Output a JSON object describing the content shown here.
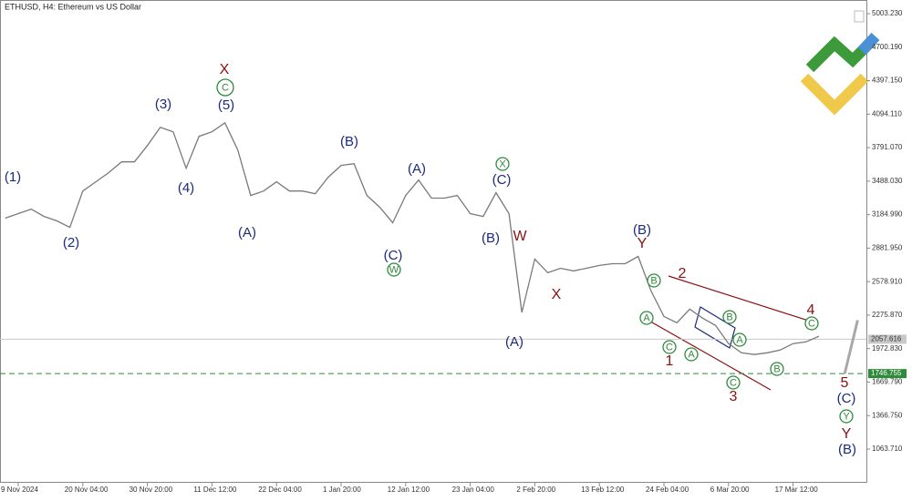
{
  "chart_data": {
    "type": "line",
    "title": "ETHUSD, H4:  Ethereum vs US Dollar",
    "categories": [
      null,
      "9 Nov 2024",
      null,
      null,
      null,
      null,
      "20 Nov 04:00",
      null,
      null,
      null,
      null,
      "30 Nov 20:00",
      null,
      null,
      null,
      null,
      "11 Dec 12:00",
      null,
      null,
      null,
      null,
      "22 Dec 04:00",
      null,
      null,
      null,
      null,
      "1 Jan 20:00",
      null,
      null,
      null,
      null,
      "12 Jan 12:00",
      null,
      null,
      null,
      null,
      "23 Jan 04:00",
      null,
      null,
      null,
      null,
      "2 Feb 20:00",
      null,
      null,
      null,
      null,
      "13 Feb 12:00",
      null,
      null,
      null,
      null,
      "24 Feb 04:00",
      null,
      null,
      null,
      null,
      "6 Mar 20:00",
      null,
      null,
      null,
      null,
      "17 Mar 12:00",
      null,
      null,
      null,
      null,
      null
    ],
    "series": [
      {
        "color": "#7a7a7a",
        "values": [
          3153,
          3194,
          3235,
          3169,
          3128,
          3070,
          3399,
          3482,
          3564,
          3662,
          3662,
          3810,
          3975,
          3934,
          3605,
          3893,
          3934,
          4016,
          3770,
          3358,
          3399,
          3482,
          3399,
          3399,
          3375,
          3523,
          3630,
          3646,
          3358,
          3251,
          3111,
          3358,
          3498,
          3334,
          3334,
          3358,
          3194,
          3169,
          3383,
          3194,
          2300,
          2783,
          2659,
          2700,
          2676,
          2700,
          2725,
          2741,
          2741,
          2807,
          2495,
          2264,
          2207,
          2330,
          2248,
          2182,
          2018,
          1935,
          1919,
          1935,
          1960,
          2018,
          2034,
          2084,
          null,
          null,
          null
        ]
      },
      {
        "color": "#a8a8a8",
        "values": [
          null,
          null,
          null,
          null,
          null,
          null,
          null,
          null,
          null,
          null,
          null,
          null,
          null,
          null,
          null,
          null,
          null,
          null,
          null,
          null,
          null,
          null,
          null,
          null,
          null,
          null,
          null,
          null,
          null,
          null,
          null,
          null,
          null,
          null,
          null,
          null,
          null,
          null,
          null,
          null,
          null,
          null,
          null,
          null,
          null,
          null,
          null,
          null,
          null,
          null,
          null,
          null,
          null,
          null,
          null,
          null,
          null,
          null,
          null,
          null,
          null,
          null,
          null,
          2084,
          null,
          1746,
          2230
        ]
      }
    ],
    "ylim": [
      758.9,
      5126.9
    ],
    "yticks": [
      {
        "value": 5003.23,
        "label": "5003.230"
      },
      {
        "value": 4700.19,
        "label": "4700.190"
      },
      {
        "value": 4397.15,
        "label": "4397.150"
      },
      {
        "value": 4094.11,
        "label": "4094.110"
      },
      {
        "value": 3791.07,
        "label": "3791.070"
      },
      {
        "value": 3488.03,
        "label": "3488.030"
      },
      {
        "value": 3184.99,
        "label": "3184.990"
      },
      {
        "value": 2881.95,
        "label": "2881.950"
      },
      {
        "value": 2578.91,
        "label": "2578.910"
      },
      {
        "value": 2275.87,
        "label": "2275.870"
      },
      {
        "value": 1972.83,
        "label": "1972.830"
      },
      {
        "value": 1669.79,
        "label": "1669.790"
      },
      {
        "value": 1366.75,
        "label": "1366.750"
      },
      {
        "value": 1063.71,
        "label": "1063.710"
      }
    ],
    "current_price": 2057.616,
    "target_level": 1746.755,
    "target_color": "#2e8b3a",
    "wave_labels_navy": [
      "(1)",
      "(2)",
      "(3)",
      "(4)",
      "(5)",
      "(A)",
      "(B)",
      "(C)",
      "(A)",
      "(C)",
      "(B)",
      "(A)",
      "(B)",
      "(C)",
      "(B)"
    ],
    "wave_labels_red": [
      "X",
      "W",
      "X",
      "Y",
      "2",
      "1",
      "3",
      "4",
      "5",
      "Y"
    ],
    "wave_labels_circled": [
      "C",
      "X",
      "W",
      "B",
      "A",
      "C",
      "A",
      "B",
      "A",
      "C",
      "B",
      "C",
      "Y"
    ]
  }
}
